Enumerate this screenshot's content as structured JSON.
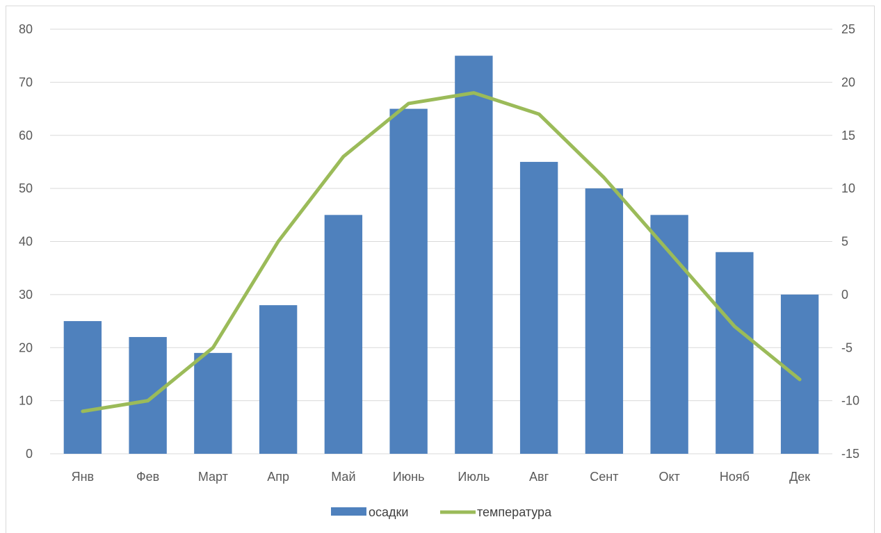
{
  "chart_data": {
    "type": "bar",
    "title": "",
    "categories": [
      "Янв",
      "Фев",
      "Март",
      "Апр",
      "Май",
      "Июнь",
      "Июль",
      "Авг",
      "Сент",
      "Окт",
      "Нояб",
      "Дек"
    ],
    "series": [
      {
        "name": "осадки",
        "type": "bar",
        "axis": "left",
        "color": "#4f81bd",
        "values": [
          25,
          22,
          19,
          28,
          45,
          65,
          75,
          55,
          50,
          45,
          38,
          30
        ]
      },
      {
        "name": "температура",
        "type": "line",
        "axis": "right",
        "color": "#9bbb59",
        "values": [
          -11,
          -10,
          -5,
          5,
          13,
          18,
          19,
          17,
          11,
          4,
          -3,
          -8
        ]
      }
    ],
    "y_left": {
      "min": 0,
      "max": 80,
      "step": 10,
      "ticks": [
        "0",
        "10",
        "20",
        "30",
        "40",
        "50",
        "60",
        "70",
        "80"
      ]
    },
    "y_right": {
      "min": -15,
      "max": 25,
      "step": 5,
      "ticks": [
        "-15",
        "-10",
        "-5",
        "0",
        "5",
        "10",
        "15",
        "20",
        "25"
      ]
    },
    "grid": true,
    "legend": {
      "position": "bottom",
      "entries": [
        "осадки",
        "температура"
      ]
    }
  }
}
